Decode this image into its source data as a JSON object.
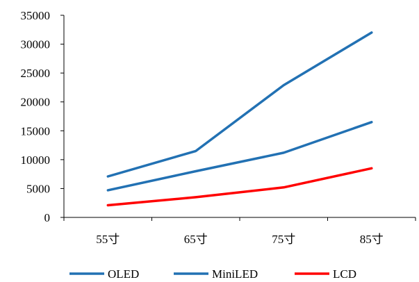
{
  "chart_data": {
    "type": "line",
    "title": "",
    "xlabel": "",
    "ylabel": "",
    "categories": [
      "55寸",
      "65寸",
      "75寸",
      "85寸"
    ],
    "ylim": [
      0,
      35000
    ],
    "yticks": [
      0,
      5000,
      10000,
      15000,
      20000,
      25000,
      30000,
      35000
    ],
    "grid": false,
    "legend_position": "bottom",
    "series": [
      {
        "name": "OLED",
        "values": [
          7100,
          11500,
          22900,
          32000
        ],
        "color": "#2271B3"
      },
      {
        "name": "MiniLED",
        "values": [
          4700,
          8000,
          11200,
          16500
        ],
        "color": "#2271B3"
      },
      {
        "name": "LCD",
        "values": [
          2100,
          3500,
          5200,
          8500
        ],
        "color": "#FF0000"
      }
    ]
  }
}
